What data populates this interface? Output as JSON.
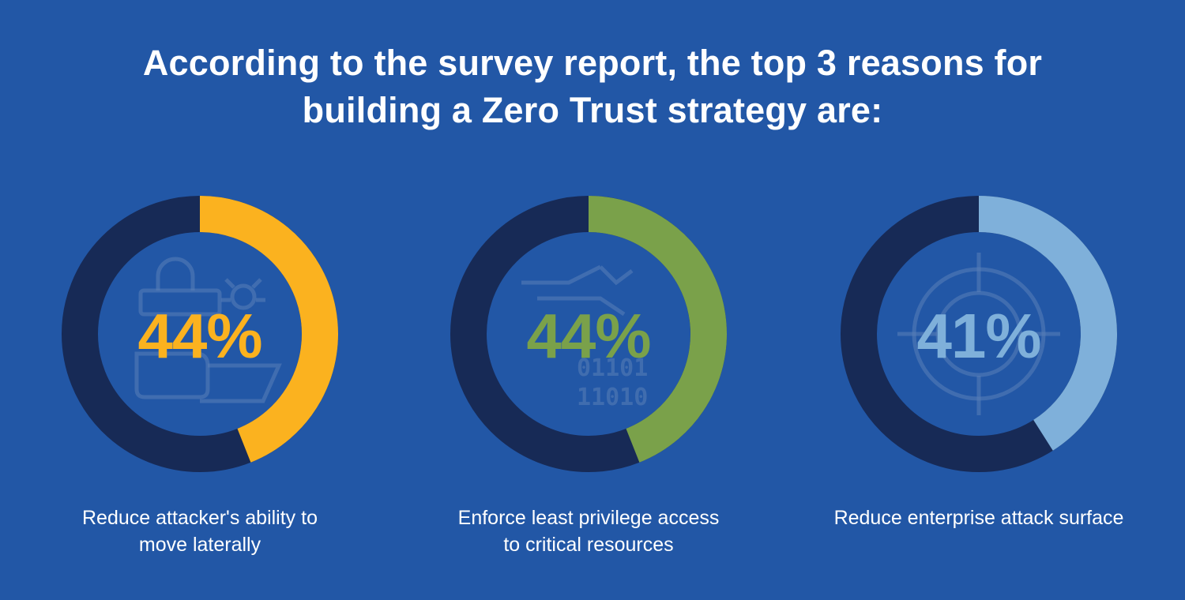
{
  "headline": {
    "line1": "According to the survey report, the top 3 reasons for",
    "line2": "building a Zero Trust strategy are:"
  },
  "colors": {
    "background": "#2257a6",
    "track": "#172a56",
    "inner": "#2257a6"
  },
  "chart_data": [
    {
      "type": "pie",
      "values": [
        44,
        56
      ],
      "value_label": "44%",
      "color": "#fbb21f",
      "icon": "security-lock-bug-icon",
      "caption_lines": [
        "Reduce attacker's ability to",
        "move laterally"
      ]
    },
    {
      "type": "pie",
      "values": [
        44,
        56
      ],
      "value_label": "44%",
      "color": "#7aa14a",
      "icon": "binary-data-icon",
      "binary_lines": [
        "01101",
        "11010"
      ],
      "caption_lines": [
        "Enforce least privilege access",
        "to critical resources"
      ]
    },
    {
      "type": "pie",
      "values": [
        41,
        59
      ],
      "value_label": "41%",
      "color": "#7fb0da",
      "icon": "target-crosshair-icon",
      "caption_lines": [
        "Reduce enterprise attack surface"
      ]
    }
  ]
}
